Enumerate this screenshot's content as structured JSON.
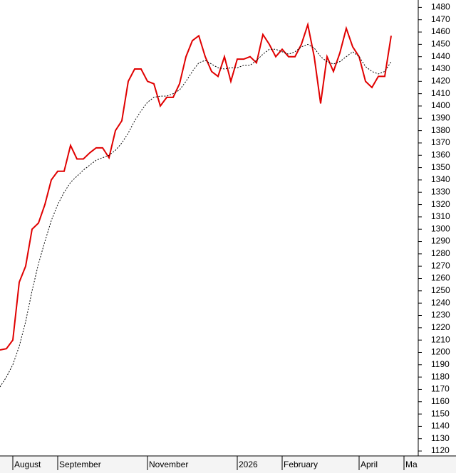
{
  "chart_data": {
    "type": "line",
    "categories": [
      null,
      null,
      "August",
      null,
      null,
      null,
      null,
      null,
      null,
      "September",
      null,
      null,
      null,
      null,
      null,
      null,
      null,
      null,
      null,
      null,
      null,
      null,
      null,
      "November",
      null,
      null,
      null,
      null,
      null,
      null,
      null,
      null,
      null,
      null,
      null,
      null,
      null,
      "2026",
      null,
      null,
      null,
      null,
      null,
      null,
      "February",
      null,
      null,
      null,
      null,
      null,
      null,
      null,
      null,
      null,
      null,
      null,
      "April",
      null,
      null,
      null,
      null,
      null,
      null,
      "Ma"
    ],
    "series": [
      {
        "color": "#e00000",
        "dash": false,
        "values": [
          1202,
          1203,
          1210,
          1257,
          1270,
          1300,
          1305,
          1320,
          1340,
          1347,
          1347,
          1368,
          1357,
          1357,
          1362,
          1366,
          1366,
          1358,
          1380,
          1388,
          1420,
          1430,
          1430,
          1420,
          1418,
          1400,
          1407,
          1407,
          1418,
          1440,
          1453,
          1457,
          1440,
          1428,
          1424,
          1440,
          1420,
          1438,
          1438,
          1440,
          1435,
          1458,
          1450,
          1440,
          1446,
          1440,
          1440,
          1450,
          1466,
          1440,
          1402,
          1440,
          1428,
          1443,
          1463,
          1448,
          1440,
          1420,
          1415,
          1424,
          1424,
          1457,
          null,
          null
        ]
      },
      {
        "color": "#000000",
        "dash": true,
        "values": [
          1172,
          1180,
          1190,
          1205,
          1225,
          1250,
          1272,
          1290,
          1307,
          1320,
          1330,
          1338,
          1343,
          1348,
          1352,
          1356,
          1358,
          1360,
          1364,
          1370,
          1378,
          1388,
          1396,
          1403,
          1407,
          1408,
          1408,
          1410,
          1413,
          1420,
          1428,
          1435,
          1437,
          1434,
          1431,
          1430,
          1431,
          1431,
          1433,
          1433,
          1437,
          1442,
          1446,
          1446,
          1444,
          1442,
          1444,
          1448,
          1450,
          1447,
          1440,
          1436,
          1434,
          1436,
          1440,
          1444,
          1440,
          1432,
          1428,
          1426,
          1428,
          1436,
          null,
          null
        ]
      }
    ],
    "ylim": [
      1116,
      1486
    ],
    "yticks": [
      1120,
      1130,
      1140,
      1150,
      1160,
      1170,
      1180,
      1190,
      1200,
      1210,
      1220,
      1230,
      1240,
      1250,
      1260,
      1270,
      1280,
      1290,
      1300,
      1310,
      1320,
      1330,
      1340,
      1350,
      1360,
      1370,
      1380,
      1390,
      1400,
      1410,
      1420,
      1430,
      1440,
      1450,
      1460,
      1470,
      1480
    ],
    "y_axis_side": "right"
  }
}
